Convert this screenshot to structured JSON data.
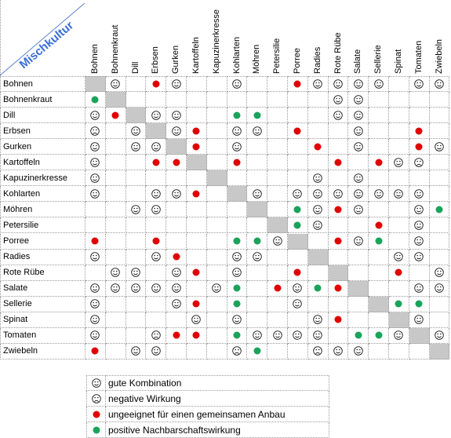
{
  "corner_title": "Mischkultur",
  "plants": [
    "Bohnen",
    "Bohnenkraut",
    "Dill",
    "Erbsen",
    "Gurken",
    "Kartoffeln",
    "Kapuzinerkresse",
    "Kohlarten",
    "Möhren",
    "Petersilie",
    "Porree",
    "Radies",
    "Rote Rübe",
    "Salate",
    "Sellerie",
    "Spinat",
    "Tomaten",
    "Zwiebeln"
  ],
  "grid": [
    [
      "x",
      "g",
      "",
      "r",
      "g",
      "",
      "",
      "g",
      "",
      "",
      "r",
      "g",
      "g",
      "g",
      "g",
      "",
      "g",
      "g"
    ],
    [
      "p",
      "x",
      "",
      "",
      "",
      "",
      "",
      "",
      "",
      "",
      "",
      "",
      "g",
      "g",
      "",
      "",
      "",
      ""
    ],
    [
      "g",
      "r",
      "x",
      "g",
      "g",
      "",
      "",
      "p",
      "p",
      "",
      "",
      "",
      "g",
      "g",
      "",
      "",
      "",
      ""
    ],
    [
      "n",
      "",
      "g",
      "x",
      "g",
      "r",
      "",
      "g",
      "g",
      "",
      "r",
      "",
      "",
      "g",
      "",
      "",
      "r",
      ""
    ],
    [
      "g",
      "",
      "g",
      "g",
      "x",
      "r",
      "",
      "g",
      "",
      "",
      "",
      "r",
      "",
      "g",
      "",
      "",
      "r",
      "g"
    ],
    [
      "g",
      "",
      "",
      "r",
      "r",
      "x",
      "",
      "r",
      "",
      "",
      "",
      "",
      "r",
      "",
      "r",
      "g",
      "n",
      ""
    ],
    [
      "g",
      "",
      "",
      "",
      "",
      "",
      "x",
      "",
      "",
      "",
      "",
      "g",
      "",
      "g",
      "",
      "",
      "",
      ""
    ],
    [
      "g",
      "",
      "",
      "g",
      "g",
      "r",
      "",
      "x",
      "g",
      "",
      "g",
      "g",
      "g",
      "g",
      "g",
      "g",
      "g",
      ""
    ],
    [
      "",
      "",
      "g",
      "g",
      "",
      "",
      "",
      "",
      "x",
      "",
      "p",
      "g",
      "r",
      "g",
      "",
      "",
      "g",
      "p"
    ],
    [
      "",
      "",
      "",
      "",
      "",
      "",
      "",
      "",
      "",
      "x",
      "p",
      "g",
      "",
      "",
      "r",
      "",
      "g",
      ""
    ],
    [
      "r",
      "",
      "",
      "r",
      "",
      "",
      "",
      "p",
      "p",
      "g",
      "x",
      "",
      "r",
      "g",
      "p",
      "",
      "g",
      ""
    ],
    [
      "g",
      "",
      "",
      "g",
      "r",
      "",
      "",
      "g",
      "g",
      "",
      "",
      "x",
      "",
      "",
      "",
      "g",
      "g",
      ""
    ],
    [
      "",
      "g",
      "g",
      "",
      "g",
      "r",
      "",
      "g",
      "",
      "",
      "r",
      "",
      "x",
      "",
      "",
      "r",
      "",
      "g"
    ],
    [
      "g",
      "g",
      "g",
      "g",
      "g",
      "",
      "g",
      "p",
      "",
      "r",
      "g",
      "p",
      "r",
      "x",
      "",
      "",
      "g",
      "g"
    ],
    [
      "g",
      "",
      "",
      "",
      "g",
      "r",
      "",
      "p",
      "",
      "",
      "g",
      "",
      "",
      "",
      "x",
      "p",
      "p",
      ""
    ],
    [
      "g",
      "",
      "",
      "",
      "",
      "g",
      "",
      "g",
      "",
      "",
      "",
      "g",
      "r",
      "",
      "",
      "x",
      "g",
      ""
    ],
    [
      "g",
      "",
      "",
      "n",
      "r",
      "r",
      "",
      "p",
      "g",
      "g",
      "g",
      "g",
      "",
      "p",
      "p",
      "g",
      "x",
      "g"
    ],
    [
      "r",
      "",
      "g",
      "g",
      "",
      "",
      "",
      "n",
      "p",
      "",
      "",
      "n",
      "g",
      "g",
      "",
      "",
      "",
      "x"
    ]
  ],
  "legend": [
    {
      "code": "g",
      "label": "gute Kombination"
    },
    {
      "code": "n",
      "label": "negative Wirkung"
    },
    {
      "code": "r",
      "label": "ungeeignet für einen gemeinsamen Anbau"
    },
    {
      "code": "p",
      "label": "positive Nachbarschaftswirkung"
    }
  ]
}
